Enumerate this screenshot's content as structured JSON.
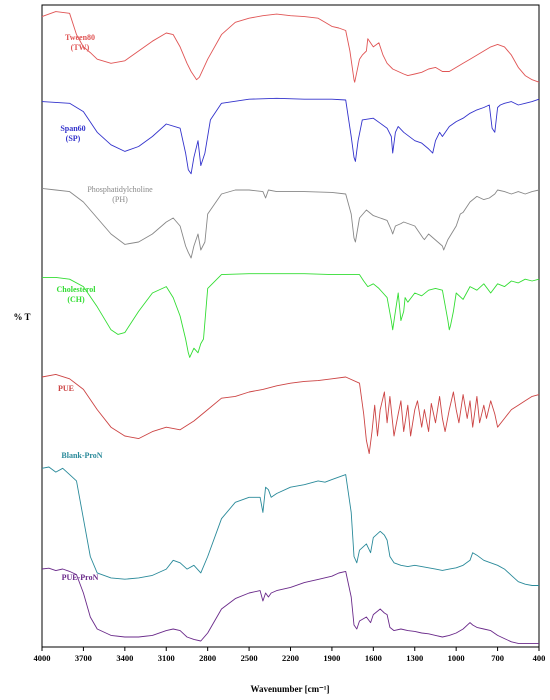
{
  "chart_data": {
    "type": "line",
    "title": "",
    "xlabel": "Wavenumber [cm⁻¹]",
    "ylabel": "% T",
    "xlim": [
      4000,
      400
    ],
    "x_reversed": true,
    "x_ticks": [
      4000,
      3700,
      3400,
      3100,
      2800,
      2500,
      2200,
      1900,
      1600,
      1300,
      1000,
      700,
      400
    ],
    "x_tick_labels": [
      "4000",
      "3700",
      "3400",
      "3100",
      "2800",
      "2500",
      "2200",
      "1900",
      "1600",
      "1300",
      "1000",
      "700",
      "400"
    ],
    "grid": false,
    "legend": "labels on left of each trace",
    "y_values_note": "relative transmittance, 0 (strong absorption) to 1 (baseline), stacked traces with offsets",
    "series": [
      {
        "label_lines": [
          "Tween80",
          "(TW)"
        ],
        "color": "#e05555",
        "x": [
          4000,
          3900,
          3800,
          3750,
          3700,
          3650,
          3600,
          3500,
          3400,
          3300,
          3200,
          3100,
          3050,
          3000,
          2950,
          2920,
          2880,
          2860,
          2800,
          2700,
          2600,
          2500,
          2400,
          2300,
          2200,
          2100,
          2000,
          1950,
          1900,
          1850,
          1800,
          1770,
          1740,
          1735,
          1700,
          1680,
          1650,
          1640,
          1600,
          1560,
          1530,
          1500,
          1460,
          1420,
          1380,
          1350,
          1300,
          1250,
          1200,
          1150,
          1100,
          1050,
          1000,
          950,
          900,
          850,
          800,
          750,
          700,
          650,
          600,
          550,
          500,
          450,
          400
        ],
        "y": [
          0.92,
          0.98,
          0.96,
          0.7,
          0.55,
          0.48,
          0.4,
          0.35,
          0.38,
          0.5,
          0.62,
          0.72,
          0.7,
          0.55,
          0.35,
          0.25,
          0.15,
          0.18,
          0.4,
          0.7,
          0.85,
          0.9,
          0.93,
          0.95,
          0.93,
          0.92,
          0.9,
          0.85,
          0.8,
          0.78,
          0.75,
          0.5,
          0.15,
          0.12,
          0.4,
          0.45,
          0.5,
          0.65,
          0.55,
          0.6,
          0.45,
          0.35,
          0.28,
          0.25,
          0.22,
          0.2,
          0.22,
          0.24,
          0.28,
          0.3,
          0.25,
          0.25,
          0.3,
          0.35,
          0.4,
          0.45,
          0.5,
          0.55,
          0.58,
          0.55,
          0.45,
          0.3,
          0.2,
          0.15,
          0.12
        ]
      },
      {
        "label_lines": [
          "Span60",
          "(SP)"
        ],
        "color": "#3333cc",
        "x": [
          4000,
          3800,
          3700,
          3600,
          3500,
          3400,
          3300,
          3200,
          3100,
          3000,
          2960,
          2940,
          2920,
          2900,
          2870,
          2850,
          2820,
          2780,
          2700,
          2500,
          2300,
          2100,
          1900,
          1800,
          1760,
          1740,
          1730,
          1710,
          1680,
          1600,
          1500,
          1470,
          1460,
          1440,
          1420,
          1380,
          1300,
          1250,
          1200,
          1170,
          1150,
          1120,
          1100,
          1050,
          1000,
          950,
          900,
          850,
          800,
          760,
          740,
          720,
          700,
          680,
          650,
          600,
          550,
          500,
          450,
          400
        ],
        "y": [
          0.92,
          0.9,
          0.8,
          0.55,
          0.4,
          0.32,
          0.38,
          0.5,
          0.65,
          0.6,
          0.3,
          0.1,
          0.05,
          0.25,
          0.45,
          0.15,
          0.3,
          0.7,
          0.9,
          0.95,
          0.96,
          0.95,
          0.95,
          0.94,
          0.5,
          0.25,
          0.2,
          0.45,
          0.7,
          0.72,
          0.6,
          0.5,
          0.3,
          0.55,
          0.62,
          0.55,
          0.45,
          0.42,
          0.35,
          0.3,
          0.45,
          0.55,
          0.5,
          0.62,
          0.68,
          0.72,
          0.78,
          0.82,
          0.85,
          0.88,
          0.6,
          0.55,
          0.85,
          0.88,
          0.9,
          0.92,
          0.88,
          0.9,
          0.92,
          0.95
        ]
      },
      {
        "label_lines": [
          "Phosphatidylcholine",
          "(PH)"
        ],
        "color": "#888888",
        "x": [
          4000,
          3900,
          3800,
          3700,
          3600,
          3500,
          3400,
          3300,
          3200,
          3100,
          3050,
          3000,
          2960,
          2940,
          2920,
          2900,
          2870,
          2850,
          2820,
          2800,
          2700,
          2600,
          2500,
          2400,
          2380,
          2360,
          2300,
          2100,
          1900,
          1800,
          1760,
          1740,
          1730,
          1700,
          1650,
          1600,
          1550,
          1500,
          1470,
          1460,
          1440,
          1400,
          1380,
          1300,
          1240,
          1230,
          1200,
          1100,
          1090,
          1060,
          1000,
          970,
          950,
          900,
          850,
          800,
          760,
          720,
          700,
          650,
          600,
          550,
          500,
          450,
          400
        ],
        "y": [
          0.92,
          0.9,
          0.88,
          0.75,
          0.55,
          0.35,
          0.22,
          0.25,
          0.35,
          0.5,
          0.55,
          0.45,
          0.2,
          0.12,
          0.05,
          0.2,
          0.35,
          0.15,
          0.25,
          0.6,
          0.85,
          0.9,
          0.9,
          0.88,
          0.8,
          0.9,
          0.88,
          0.88,
          0.87,
          0.85,
          0.6,
          0.3,
          0.25,
          0.55,
          0.65,
          0.58,
          0.55,
          0.52,
          0.4,
          0.35,
          0.45,
          0.48,
          0.5,
          0.45,
          0.3,
          0.28,
          0.35,
          0.2,
          0.15,
          0.28,
          0.45,
          0.6,
          0.62,
          0.75,
          0.82,
          0.78,
          0.8,
          0.85,
          0.9,
          0.88,
          0.85,
          0.88,
          0.85,
          0.88,
          0.9
        ]
      },
      {
        "label_lines": [
          "Cholesterol",
          "(CH)"
        ],
        "color": "#33dd33",
        "x": [
          4000,
          3900,
          3800,
          3700,
          3600,
          3500,
          3450,
          3400,
          3300,
          3200,
          3100,
          3050,
          3000,
          2960,
          2940,
          2930,
          2900,
          2870,
          2850,
          2830,
          2800,
          2700,
          2500,
          2300,
          2100,
          1900,
          1700,
          1670,
          1640,
          1600,
          1560,
          1500,
          1470,
          1460,
          1440,
          1420,
          1400,
          1380,
          1370,
          1350,
          1300,
          1250,
          1200,
          1150,
          1100,
          1060,
          1050,
          1040,
          1020,
          1000,
          950,
          900,
          850,
          800,
          750,
          700,
          650,
          600,
          550,
          500,
          450,
          400
        ],
        "y": [
          0.92,
          0.92,
          0.9,
          0.82,
          0.6,
          0.35,
          0.3,
          0.32,
          0.55,
          0.75,
          0.82,
          0.7,
          0.5,
          0.25,
          0.1,
          0.05,
          0.15,
          0.1,
          0.2,
          0.25,
          0.8,
          0.95,
          0.96,
          0.96,
          0.96,
          0.95,
          0.95,
          0.88,
          0.82,
          0.85,
          0.8,
          0.7,
          0.45,
          0.35,
          0.55,
          0.75,
          0.45,
          0.55,
          0.7,
          0.65,
          0.75,
          0.72,
          0.78,
          0.8,
          0.78,
          0.45,
          0.35,
          0.4,
          0.55,
          0.75,
          0.68,
          0.82,
          0.78,
          0.85,
          0.75,
          0.85,
          0.82,
          0.88,
          0.86,
          0.9,
          0.88,
          0.9
        ]
      },
      {
        "label_lines": [
          "PUE"
        ],
        "color": "#cc4444",
        "x": [
          4000,
          3900,
          3800,
          3700,
          3600,
          3500,
          3400,
          3300,
          3200,
          3100,
          3000,
          2900,
          2800,
          2700,
          2600,
          2500,
          2400,
          2300,
          2200,
          2100,
          2000,
          1900,
          1800,
          1700,
          1670,
          1650,
          1630,
          1610,
          1590,
          1570,
          1550,
          1520,
          1500,
          1480,
          1450,
          1420,
          1400,
          1380,
          1350,
          1330,
          1300,
          1280,
          1250,
          1230,
          1200,
          1180,
          1150,
          1120,
          1100,
          1080,
          1050,
          1020,
          1000,
          980,
          950,
          920,
          900,
          880,
          850,
          830,
          800,
          780,
          750,
          720,
          700,
          650,
          600,
          550,
          500,
          450,
          400
        ],
        "y": [
          0.92,
          0.95,
          0.9,
          0.78,
          0.55,
          0.35,
          0.25,
          0.22,
          0.3,
          0.35,
          0.32,
          0.42,
          0.55,
          0.68,
          0.7,
          0.75,
          0.78,
          0.82,
          0.85,
          0.87,
          0.88,
          0.9,
          0.92,
          0.85,
          0.5,
          0.2,
          0.05,
          0.3,
          0.6,
          0.25,
          0.55,
          0.75,
          0.4,
          0.7,
          0.25,
          0.5,
          0.65,
          0.3,
          0.6,
          0.25,
          0.55,
          0.65,
          0.35,
          0.55,
          0.3,
          0.62,
          0.4,
          0.7,
          0.45,
          0.3,
          0.55,
          0.75,
          0.55,
          0.4,
          0.72,
          0.45,
          0.65,
          0.35,
          0.7,
          0.4,
          0.6,
          0.45,
          0.65,
          0.5,
          0.35,
          0.45,
          0.55,
          0.6,
          0.65,
          0.7,
          0.72
        ]
      },
      {
        "label_lines": [
          "Blank-ProN"
        ],
        "color": "#2a8a9a",
        "x": [
          4000,
          3950,
          3900,
          3850,
          3800,
          3750,
          3700,
          3650,
          3600,
          3500,
          3400,
          3300,
          3200,
          3100,
          3050,
          3000,
          2950,
          2900,
          2850,
          2800,
          2700,
          2600,
          2500,
          2420,
          2400,
          2380,
          2360,
          2340,
          2300,
          2200,
          2100,
          2000,
          1950,
          1900,
          1850,
          1800,
          1760,
          1740,
          1720,
          1700,
          1650,
          1620,
          1600,
          1550,
          1520,
          1500,
          1480,
          1450,
          1400,
          1350,
          1300,
          1250,
          1200,
          1150,
          1100,
          1050,
          1000,
          950,
          900,
          880,
          850,
          800,
          750,
          700,
          650,
          600,
          550,
          500,
          450,
          400
        ],
        "y": [
          0.95,
          0.96,
          0.92,
          0.95,
          0.9,
          0.85,
          0.55,
          0.25,
          0.12,
          0.08,
          0.07,
          0.08,
          0.1,
          0.15,
          0.22,
          0.2,
          0.15,
          0.18,
          0.12,
          0.25,
          0.55,
          0.68,
          0.72,
          0.72,
          0.6,
          0.8,
          0.78,
          0.72,
          0.75,
          0.8,
          0.82,
          0.85,
          0.84,
          0.86,
          0.88,
          0.9,
          0.6,
          0.25,
          0.2,
          0.3,
          0.35,
          0.28,
          0.4,
          0.45,
          0.42,
          0.38,
          0.25,
          0.2,
          0.18,
          0.17,
          0.18,
          0.17,
          0.16,
          0.15,
          0.14,
          0.15,
          0.16,
          0.18,
          0.22,
          0.28,
          0.26,
          0.22,
          0.2,
          0.18,
          0.15,
          0.1,
          0.05,
          0.03,
          0.02,
          0.02
        ]
      },
      {
        "label_lines": [
          "PUE-ProN"
        ],
        "color": "#6a2a8a",
        "x": [
          4000,
          3950,
          3900,
          3850,
          3800,
          3750,
          3700,
          3650,
          3600,
          3500,
          3400,
          3300,
          3200,
          3100,
          3050,
          3000,
          2950,
          2900,
          2850,
          2800,
          2700,
          2600,
          2500,
          2420,
          2400,
          2380,
          2360,
          2340,
          2300,
          2200,
          2100,
          2000,
          1950,
          1900,
          1850,
          1800,
          1760,
          1740,
          1720,
          1700,
          1650,
          1620,
          1600,
          1550,
          1520,
          1500,
          1480,
          1450,
          1400,
          1350,
          1300,
          1250,
          1200,
          1150,
          1100,
          1050,
          1000,
          950,
          900,
          880,
          850,
          800,
          750,
          700,
          650,
          600,
          550,
          500,
          450,
          400
        ],
        "y": [
          0.95,
          0.96,
          0.93,
          0.95,
          0.92,
          0.88,
          0.65,
          0.35,
          0.2,
          0.12,
          0.1,
          0.1,
          0.12,
          0.18,
          0.2,
          0.18,
          0.1,
          0.07,
          0.05,
          0.15,
          0.45,
          0.58,
          0.65,
          0.68,
          0.55,
          0.65,
          0.6,
          0.65,
          0.68,
          0.72,
          0.78,
          0.82,
          0.84,
          0.86,
          0.9,
          0.92,
          0.6,
          0.25,
          0.2,
          0.3,
          0.35,
          0.28,
          0.38,
          0.45,
          0.4,
          0.38,
          0.22,
          0.18,
          0.2,
          0.18,
          0.17,
          0.15,
          0.14,
          0.12,
          0.1,
          0.12,
          0.15,
          0.2,
          0.28,
          0.25,
          0.22,
          0.2,
          0.18,
          0.12,
          0.08,
          0.04,
          0.02,
          0.02,
          0.02,
          0.02
        ]
      }
    ]
  }
}
